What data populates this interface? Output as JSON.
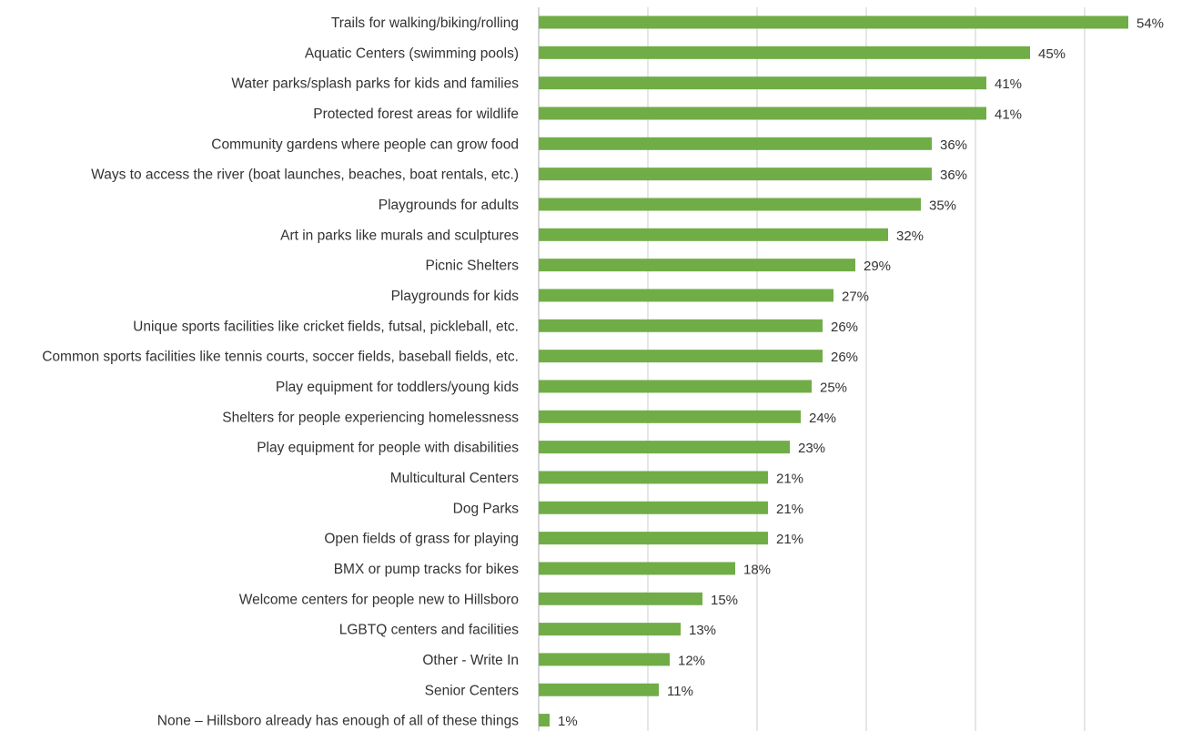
{
  "chart_data": {
    "type": "bar",
    "orientation": "horizontal",
    "title": "",
    "xlabel": "",
    "ylabel": "",
    "xlim": [
      0,
      55
    ],
    "grid": true,
    "grid_step": 10,
    "bar_color": "#70ad47",
    "value_suffix": "%",
    "categories": [
      "Trails for walking/biking/rolling",
      "Aquatic Centers (swimming pools)",
      "Water parks/splash parks for kids and families",
      "Protected forest areas for wildlife",
      "Community gardens where people can grow food",
      "Ways to access the river (boat launches, beaches, boat rentals, etc.)",
      "Playgrounds for adults",
      "Art in parks like murals and sculptures",
      "Picnic Shelters",
      "Playgrounds for kids",
      "Unique sports facilities like cricket fields, futsal, pickleball, etc.",
      "Common sports facilities like tennis courts, soccer fields, baseball fields, etc.",
      "Play equipment for toddlers/young kids",
      "Shelters for people experiencing homelessness",
      "Play equipment for people with disabilities",
      "Multicultural Centers",
      "Dog Parks",
      "Open fields of grass for playing",
      "BMX or pump tracks for bikes",
      "Welcome centers for people new to Hillsboro",
      "LGBTQ centers and facilities",
      "Other - Write In",
      "Senior Centers",
      "None – Hillsboro already has enough of all of these things"
    ],
    "values": [
      54,
      45,
      41,
      41,
      36,
      36,
      35,
      32,
      29,
      27,
      26,
      26,
      25,
      24,
      23,
      21,
      21,
      21,
      18,
      15,
      13,
      12,
      11,
      1
    ],
    "value_labels": [
      "54%",
      "45%",
      "41%",
      "41%",
      "36%",
      "36%",
      "35%",
      "32%",
      "29%",
      "27%",
      "26%",
      "26%",
      "25%",
      "24%",
      "23%",
      "21%",
      "21%",
      "21%",
      "18%",
      "15%",
      "13%",
      "12%",
      "11%",
      "1%"
    ]
  }
}
